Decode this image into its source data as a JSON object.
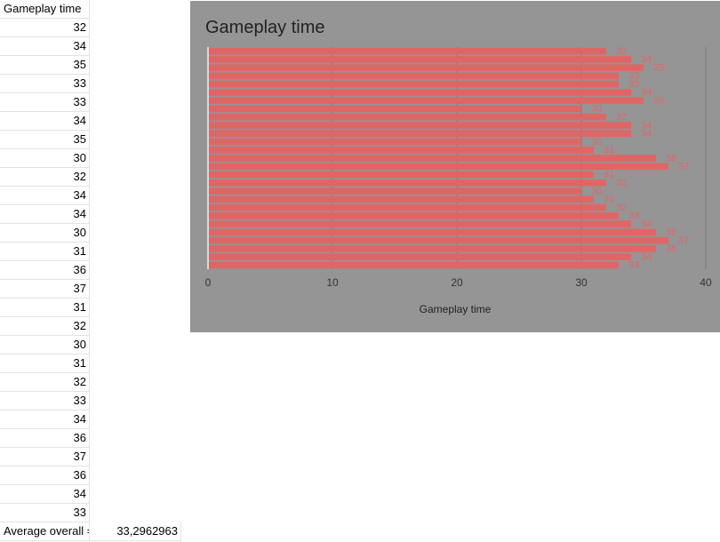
{
  "sheet": {
    "header": "Gameplay time",
    "values": [
      "32",
      "34",
      "35",
      "33",
      "33",
      "34",
      "35",
      "30",
      "32",
      "34",
      "34",
      "30",
      "31",
      "36",
      "37",
      "31",
      "32",
      "30",
      "31",
      "32",
      "33",
      "34",
      "36",
      "37",
      "36",
      "34",
      "33"
    ],
    "footer_label": "Average overall =",
    "footer_value": "33,2962963"
  },
  "colors": {
    "bar": "#e06666",
    "bar_label": "#e06666",
    "panel": "#959595",
    "text": "#222222"
  },
  "chart_data": {
    "type": "bar",
    "orientation": "horizontal",
    "title": "Gameplay time",
    "xlabel": "Gameplay time",
    "ylabel": "",
    "xlim": [
      0,
      40
    ],
    "x_ticks": [
      "0",
      "10",
      "20",
      "30",
      "40"
    ],
    "grid": true,
    "legend": "none",
    "values": [
      32,
      34,
      35,
      33,
      33,
      34,
      35,
      30,
      32,
      34,
      34,
      30,
      31,
      36,
      37,
      31,
      32,
      30,
      31,
      32,
      33,
      34,
      36,
      37,
      36,
      34,
      33
    ]
  }
}
